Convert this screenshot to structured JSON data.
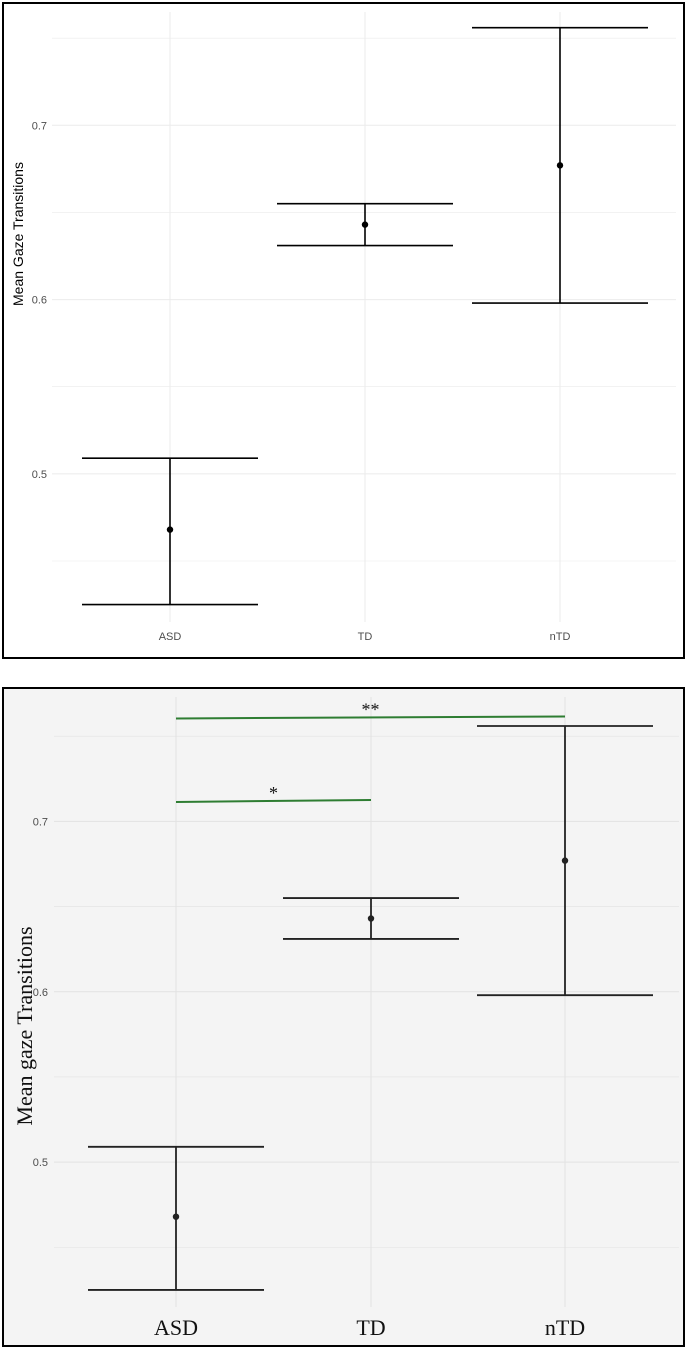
{
  "chart_data": [
    {
      "type": "scatter",
      "title": "",
      "xlabel": "",
      "ylabel": "Mean Gaze Transitions",
      "categories": [
        "ASD",
        "TD",
        "nTD"
      ],
      "values": [
        0.468,
        0.643,
        0.677
      ],
      "lower": [
        0.425,
        0.631,
        0.598
      ],
      "upper": [
        0.509,
        0.655,
        0.756
      ],
      "yticks": [
        0.5,
        0.6,
        0.7
      ],
      "ytick_labels": [
        "0.5",
        "0.6",
        "0.7"
      ],
      "ylim": [
        0.415,
        0.765
      ],
      "grid": true,
      "colors": {
        "panel_bg": "#ffffff",
        "grid": "#ebebeb",
        "mark": "#000000"
      }
    },
    {
      "type": "scatter",
      "title": "",
      "xlabel": "",
      "ylabel": "Mean gaze Transitions",
      "categories": [
        "ASD",
        "TD",
        "nTD"
      ],
      "values": [
        0.468,
        0.643,
        0.677
      ],
      "lower": [
        0.425,
        0.631,
        0.598
      ],
      "upper": [
        0.509,
        0.655,
        0.756
      ],
      "yticks": [
        0.5,
        0.6,
        0.7
      ],
      "ytick_labels": [
        "0.5",
        "0.6",
        "0.7"
      ],
      "ylim": [
        0.415,
        0.773
      ],
      "grid": true,
      "significance": [
        {
          "from": "ASD",
          "to": "TD",
          "y": 0.712,
          "label": "*"
        },
        {
          "from": "ASD",
          "to": "nTD",
          "y": 0.761,
          "label": "**"
        }
      ],
      "colors": {
        "panel_bg": "#f4f4f4",
        "grid": "#e2e2e2",
        "mark": "#222222",
        "significance": "#2e7d32"
      }
    }
  ]
}
